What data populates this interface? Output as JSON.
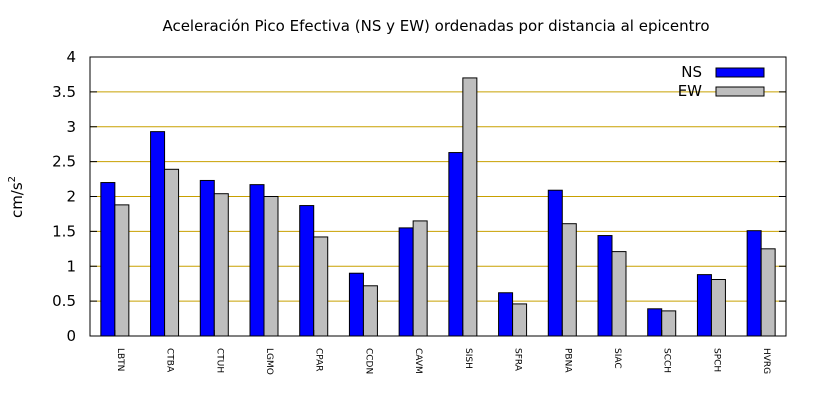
{
  "chart_data": {
    "type": "bar",
    "title": "Aceleración Pico Efectiva (NS y EW) ordenadas por distancia al epicentro",
    "xlabel": "",
    "ylabel": "cm/s",
    "ylabel_superscript": "2",
    "ylim": [
      0,
      4
    ],
    "yticks": [
      "0",
      "0.5",
      "1",
      "1.5",
      "2",
      "2.5",
      "3",
      "3.5",
      "4"
    ],
    "grid": true,
    "legend_position": "top-right",
    "categories": [
      "LBTN",
      "CTBA",
      "CTUH",
      "LGMO",
      "CPAR",
      "CCDN",
      "CAVM",
      "SISH",
      "SFRA",
      "PBNA",
      "SIAC",
      "SCCH",
      "SPCH",
      "HVRG"
    ],
    "series": [
      {
        "name": "NS",
        "color": "#0000ff",
        "values": [
          2.2,
          2.93,
          2.23,
          2.17,
          1.87,
          0.9,
          1.55,
          2.63,
          0.62,
          2.09,
          1.44,
          0.39,
          0.88,
          1.51
        ]
      },
      {
        "name": "EW",
        "color": "#bebebe",
        "values": [
          1.88,
          2.39,
          2.04,
          2.0,
          1.42,
          0.72,
          1.65,
          3.7,
          0.46,
          1.61,
          1.21,
          0.36,
          0.81,
          1.25
        ]
      }
    ],
    "grid_color": "#c8a000"
  }
}
